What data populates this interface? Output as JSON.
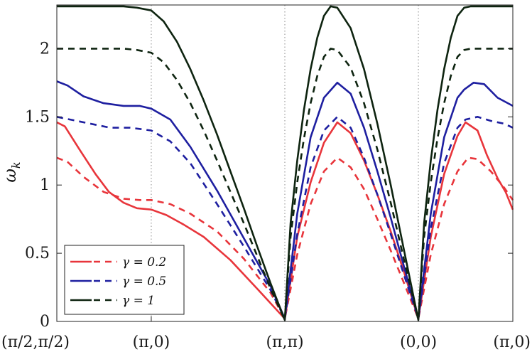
{
  "chart_data": {
    "type": "line",
    "title": "",
    "xlabel": "",
    "ylabel": "ω_k",
    "ylim": [
      0,
      2.32
    ],
    "xlim": [
      0,
      3.4142
    ],
    "grid": "vertical dotted at high-symmetry points",
    "legend_position": "bottom-left",
    "x_ticks": [
      {
        "label": "(π/2,π/2)",
        "x": 0
      },
      {
        "label": "(π,0)",
        "x": 0.7071
      },
      {
        "label": "(π,π)",
        "x": 1.7071
      },
      {
        "label": "(0,0)",
        "x": 2.7071
      },
      {
        "label": "(π,0)",
        "x": 3.4142
      }
    ],
    "y_ticks": [
      "0",
      "0.5",
      "1",
      "1.5",
      "2"
    ],
    "y_tick_values": [
      0,
      0.5,
      1,
      1.5,
      2
    ],
    "series": [
      {
        "name": "γ = 0.2",
        "color": "#e8353b",
        "style": "solid",
        "x": [
          0,
          0.06,
          0.17,
          0.29,
          0.39,
          0.5,
          0.6,
          0.7071,
          0.82,
          0.95,
          1.1,
          1.3,
          1.5,
          1.7071,
          1.8,
          1.9,
          2.0,
          2.1,
          2.2,
          2.3,
          2.4,
          2.5,
          2.6,
          2.7071,
          2.8,
          2.9,
          3.0,
          3.06,
          3.15,
          3.22,
          3.3,
          3.36,
          3.4142
        ],
        "y": [
          1.46,
          1.43,
          1.26,
          1.08,
          0.95,
          0.87,
          0.83,
          0.82,
          0.78,
          0.71,
          0.62,
          0.45,
          0.24,
          0.02,
          0.62,
          1.02,
          1.31,
          1.46,
          1.38,
          1.18,
          0.93,
          0.66,
          0.36,
          0.02,
          0.62,
          1.08,
          1.36,
          1.46,
          1.4,
          1.22,
          1.05,
          0.95,
          0.82
        ]
      },
      {
        "name": "",
        "color": "#e8353b",
        "style": "dashed",
        "x": [
          0,
          0.08,
          0.2,
          0.35,
          0.5,
          0.62,
          0.7071,
          0.85,
          1.0,
          1.2,
          1.4,
          1.6,
          1.7071,
          1.8,
          1.9,
          2.0,
          2.1,
          2.2,
          2.3,
          2.4,
          2.5,
          2.6,
          2.7071,
          2.8,
          2.9,
          3.0,
          3.08,
          3.15,
          3.25,
          3.35,
          3.4142
        ],
        "y": [
          1.2,
          1.17,
          1.06,
          0.95,
          0.9,
          0.89,
          0.89,
          0.86,
          0.79,
          0.66,
          0.46,
          0.21,
          0.02,
          0.49,
          0.86,
          1.1,
          1.2,
          1.13,
          0.97,
          0.75,
          0.52,
          0.28,
          0.02,
          0.49,
          0.86,
          1.1,
          1.2,
          1.19,
          1.1,
          0.98,
          0.89
        ]
      },
      {
        "name": "γ = 0.5",
        "color": "#1e1fa0",
        "style": "solid",
        "x": [
          0,
          0.08,
          0.2,
          0.35,
          0.5,
          0.62,
          0.7071,
          0.85,
          1.0,
          1.2,
          1.4,
          1.6,
          1.7071,
          1.8,
          1.9,
          2.0,
          2.1,
          2.2,
          2.3,
          2.4,
          2.5,
          2.6,
          2.7071,
          2.8,
          2.9,
          3.0,
          3.05,
          3.12,
          3.2,
          3.3,
          3.4142
        ],
        "y": [
          1.76,
          1.73,
          1.65,
          1.6,
          1.58,
          1.58,
          1.56,
          1.48,
          1.28,
          0.96,
          0.61,
          0.26,
          0.02,
          0.79,
          1.35,
          1.64,
          1.75,
          1.67,
          1.42,
          1.1,
          0.76,
          0.4,
          0.02,
          0.79,
          1.35,
          1.64,
          1.7,
          1.75,
          1.74,
          1.64,
          1.58
        ]
      },
      {
        "name": "",
        "color": "#1e1fa0",
        "style": "dashed",
        "x": [
          0,
          0.1,
          0.25,
          0.4,
          0.55,
          0.7071,
          0.85,
          1.0,
          1.2,
          1.4,
          1.6,
          1.7071,
          1.8,
          1.9,
          2.0,
          2.1,
          2.2,
          2.3,
          2.4,
          2.5,
          2.6,
          2.7071,
          2.8,
          2.9,
          3.0,
          3.06,
          3.15,
          3.25,
          3.35,
          3.4142
        ],
        "y": [
          1.5,
          1.48,
          1.45,
          1.42,
          1.42,
          1.4,
          1.32,
          1.16,
          0.86,
          0.55,
          0.23,
          0.02,
          0.64,
          1.13,
          1.4,
          1.5,
          1.42,
          1.2,
          0.93,
          0.64,
          0.34,
          0.02,
          0.68,
          1.16,
          1.42,
          1.48,
          1.5,
          1.47,
          1.45,
          1.42
        ]
      },
      {
        "name": "γ = 1",
        "color": "#0e2410",
        "style": "solid",
        "x": [
          0,
          0.25,
          0.5,
          0.6,
          0.7071,
          0.8,
          0.9,
          1.0,
          1.1,
          1.2,
          1.3,
          1.4,
          1.5,
          1.6,
          1.7071,
          1.75,
          1.8,
          1.85,
          1.9,
          1.95,
          2.0,
          2.05,
          2.1,
          2.2,
          2.3,
          2.4,
          2.5,
          2.6,
          2.7071,
          2.75,
          2.8,
          2.85,
          2.9,
          2.95,
          3.0,
          3.05,
          3.1,
          3.2,
          3.3,
          3.4142
        ],
        "y": [
          2.31,
          2.31,
          2.31,
          2.3,
          2.28,
          2.2,
          2.05,
          1.85,
          1.62,
          1.37,
          1.1,
          0.83,
          0.55,
          0.28,
          0.01,
          0.72,
          1.18,
          1.55,
          1.85,
          2.08,
          2.24,
          2.31,
          2.3,
          2.15,
          1.85,
          1.45,
          1.0,
          0.52,
          0.01,
          0.72,
          1.18,
          1.55,
          1.85,
          2.08,
          2.24,
          2.3,
          2.31,
          2.31,
          2.31,
          2.31
        ]
      },
      {
        "name": "",
        "color": "#0e2410",
        "style": "dashed",
        "x": [
          0,
          0.25,
          0.5,
          0.6,
          0.7071,
          0.8,
          0.9,
          1.0,
          1.1,
          1.2,
          1.3,
          1.4,
          1.5,
          1.6,
          1.7071,
          1.75,
          1.8,
          1.85,
          1.9,
          1.95,
          2.0,
          2.05,
          2.1,
          2.2,
          2.3,
          2.4,
          2.5,
          2.6,
          2.7071,
          2.75,
          2.8,
          2.85,
          2.9,
          2.95,
          3.0,
          3.05,
          3.1,
          3.2,
          3.3,
          3.4142
        ],
        "y": [
          2.0,
          2.0,
          2.0,
          1.99,
          1.97,
          1.9,
          1.77,
          1.6,
          1.4,
          1.18,
          0.95,
          0.72,
          0.48,
          0.24,
          0.01,
          0.62,
          1.02,
          1.34,
          1.6,
          1.8,
          1.94,
          2.0,
          1.99,
          1.86,
          1.6,
          1.26,
          0.87,
          0.45,
          0.01,
          0.62,
          1.02,
          1.34,
          1.6,
          1.8,
          1.94,
          1.99,
          2.0,
          2.0,
          2.0,
          2.0
        ]
      }
    ],
    "legend": [
      {
        "label": "γ = 0.2",
        "color": "#e8353b"
      },
      {
        "label": "γ = 0.5",
        "color": "#1e1fa0"
      },
      {
        "label": "γ = 1",
        "color": "#0e2410"
      }
    ]
  }
}
